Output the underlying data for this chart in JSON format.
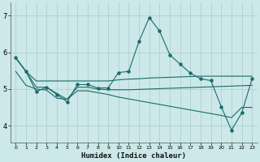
{
  "xlabel": "Humidex (Indice chaleur)",
  "xlim": [
    -0.5,
    23.5
  ],
  "ylim": [
    3.55,
    7.35
  ],
  "yticks": [
    4,
    5,
    6,
    7
  ],
  "xticks": [
    0,
    1,
    2,
    3,
    4,
    5,
    6,
    7,
    8,
    9,
    10,
    11,
    12,
    13,
    14,
    15,
    16,
    17,
    18,
    19,
    20,
    21,
    22,
    23
  ],
  "bg_color": "#cce8e8",
  "grid_color": "#aacccc",
  "line_color": "#1a6b6b",
  "main_line": {
    "x": [
      0,
      1,
      2,
      3,
      4,
      5,
      6,
      7,
      8,
      9,
      10,
      11,
      12,
      13,
      14,
      15,
      16,
      17,
      18,
      19,
      20,
      21,
      22,
      23
    ],
    "y": [
      5.85,
      5.48,
      4.93,
      5.05,
      4.85,
      4.65,
      5.12,
      5.12,
      5.03,
      5.03,
      5.45,
      5.48,
      6.3,
      6.95,
      6.58,
      5.93,
      5.68,
      5.43,
      5.28,
      5.23,
      4.52,
      3.88,
      4.35,
      5.28
    ]
  },
  "upper_flat_line": {
    "x": [
      0,
      1,
      2,
      3,
      4,
      5,
      6,
      7,
      8,
      9,
      10,
      11,
      12,
      13,
      14,
      15,
      16,
      17,
      18,
      19,
      20,
      21,
      22,
      23
    ],
    "y": [
      5.85,
      5.48,
      5.22,
      5.22,
      5.22,
      5.22,
      5.22,
      5.22,
      5.22,
      5.22,
      5.25,
      5.27,
      5.28,
      5.3,
      5.31,
      5.32,
      5.33,
      5.34,
      5.35,
      5.35,
      5.35,
      5.35,
      5.35,
      5.35
    ]
  },
  "lower_declining_line": {
    "x": [
      0,
      1,
      2,
      3,
      4,
      5,
      6,
      7,
      8,
      9,
      10,
      11,
      12,
      13,
      14,
      15,
      16,
      17,
      18,
      19,
      20,
      21,
      22,
      23
    ],
    "y": [
      5.48,
      5.1,
      5.0,
      4.97,
      4.75,
      4.72,
      4.95,
      4.95,
      4.9,
      4.85,
      4.78,
      4.73,
      4.68,
      4.63,
      4.58,
      4.53,
      4.48,
      4.43,
      4.38,
      4.33,
      4.28,
      4.22,
      4.5,
      4.5
    ]
  },
  "mid_line": {
    "x": [
      0,
      1,
      2,
      3,
      4,
      5,
      6,
      7,
      8,
      9,
      10,
      11,
      12,
      13,
      14,
      15,
      16,
      17,
      18,
      19,
      20,
      21,
      22,
      23
    ],
    "y": [
      5.85,
      5.48,
      5.05,
      5.05,
      4.88,
      4.72,
      5.05,
      5.05,
      5.0,
      4.98,
      4.98,
      4.98,
      4.99,
      5.0,
      5.01,
      5.02,
      5.03,
      5.04,
      5.05,
      5.06,
      5.07,
      5.08,
      5.09,
      5.1
    ]
  }
}
